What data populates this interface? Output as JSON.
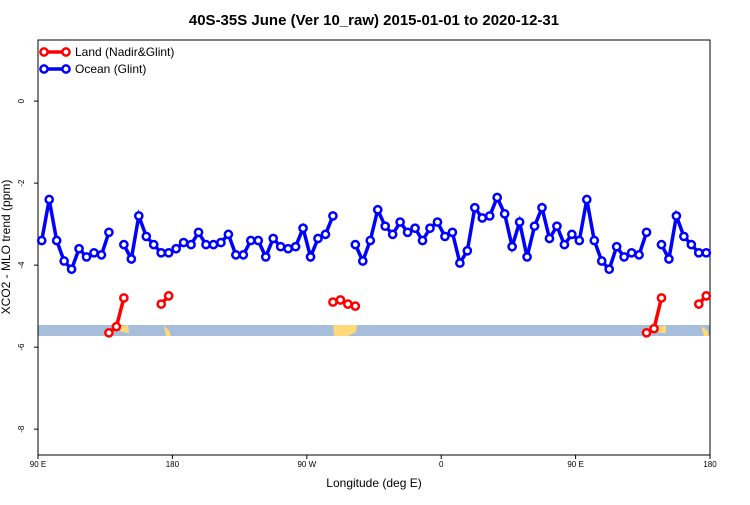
{
  "chart_data": {
    "type": "line",
    "title": "40S-35S June (Ver 10_raw)   2015-01-01 to 2020-12-31",
    "xlabel": "Longitude (deg E)",
    "ylabel": "XCO2 - MLO trend (ppm)",
    "x": [
      92.5,
      97.5,
      102.5,
      107.5,
      112.5,
      117.5,
      122.5,
      127.5,
      132.5,
      137.5,
      142.5,
      147.5,
      152.5,
      157.5,
      162.5,
      167.5,
      172.5,
      177.5,
      182.5,
      187.5,
      192.5,
      197.5,
      202.5,
      207.5,
      212.5,
      217.5,
      222.5,
      227.5,
      232.5,
      237.5,
      242.5,
      247.5,
      252.5,
      257.5,
      262.5,
      267.5,
      272.5,
      277.5,
      282.5,
      287.5,
      292.5,
      297.5,
      302.5,
      307.5,
      312.5,
      317.5,
      322.5,
      327.5,
      332.5,
      337.5,
      342.5,
      347.5,
      352.5,
      357.5,
      362.5,
      367.5,
      372.5,
      377.5,
      382.5,
      387.5,
      392.5,
      397.5,
      402.5,
      407.5,
      412.5,
      417.5,
      422.5,
      427.5,
      432.5,
      437.5,
      442.5,
      447.5,
      452.5,
      457.5,
      462.5,
      467.5,
      472.5,
      477.5,
      482.5,
      487.5,
      492.5,
      497.5,
      502.5,
      507.5,
      512.5,
      517.5,
      522.5,
      527.5,
      532.5,
      537.5
    ],
    "series": [
      {
        "name": "Land (Nadir&Glint)",
        "color": "#ff0000",
        "values": [
          null,
          null,
          null,
          null,
          null,
          null,
          null,
          null,
          null,
          -5.65,
          -5.5,
          -4.8,
          null,
          null,
          null,
          null,
          -4.95,
          -4.75,
          null,
          null,
          null,
          null,
          null,
          null,
          null,
          null,
          null,
          null,
          null,
          null,
          null,
          null,
          null,
          null,
          null,
          null,
          null,
          null,
          null,
          -4.9,
          -4.85,
          -4.95,
          -5.0,
          null,
          null,
          null,
          null,
          null,
          null,
          null,
          null,
          null,
          null,
          null,
          null,
          null,
          null,
          null,
          null,
          null,
          null,
          null,
          null,
          null,
          null,
          null,
          null,
          null,
          null,
          null,
          null,
          null,
          null,
          null,
          null,
          null,
          null,
          null,
          null,
          null,
          null,
          -5.65,
          -5.55,
          -4.8,
          null,
          null,
          null,
          null,
          -4.95,
          -4.75
        ]
      },
      {
        "name": "Ocean (Glint)",
        "color": "#0000ff",
        "values": [
          -3.4,
          -2.4,
          -3.4,
          -3.9,
          -4.1,
          -3.6,
          -3.8,
          -3.7,
          -3.75,
          -3.2,
          null,
          -3.5,
          -3.85,
          -2.8,
          -3.3,
          -3.5,
          -3.7,
          -3.7,
          -3.6,
          -3.45,
          -3.5,
          -3.2,
          -3.5,
          -3.5,
          -3.45,
          -3.25,
          -3.75,
          -3.75,
          -3.4,
          -3.4,
          -3.8,
          -3.35,
          -3.55,
          -3.6,
          -3.55,
          -3.1,
          -3.8,
          -3.35,
          -3.25,
          -2.8,
          null,
          null,
          -3.5,
          -3.9,
          -3.4,
          -2.65,
          -3.05,
          -3.25,
          -2.95,
          -3.2,
          -3.1,
          -3.4,
          -3.1,
          -2.95,
          -3.3,
          -3.2,
          -3.95,
          -3.65,
          -2.6,
          -2.85,
          -2.8,
          -2.35,
          -2.75,
          -3.55,
          -2.95,
          -3.8,
          -3.05,
          -2.6,
          -3.35,
          -3.05,
          -3.5,
          -3.25,
          -3.4,
          -2.4,
          -3.4,
          -3.9,
          -4.1,
          -3.55,
          -3.8,
          -3.7,
          -3.75,
          -3.2,
          null,
          -3.5,
          -3.85,
          -2.8,
          -3.3,
          -3.5,
          -3.7,
          -3.7
        ]
      }
    ],
    "xlim": [
      90,
      540
    ],
    "xticks": [
      {
        "value": 90,
        "label": "90 E"
      },
      {
        "value": 180,
        "label": "180"
      },
      {
        "value": 270,
        "label": "90 W"
      },
      {
        "value": 360,
        "label": "0"
      },
      {
        "value": 450,
        "label": "90 E"
      },
      {
        "value": 540,
        "label": "180"
      }
    ],
    "ylim": [
      -8.63,
      1.49
    ],
    "yticks": [
      0,
      -2,
      -4,
      -6,
      -8
    ],
    "legend": "top-left"
  }
}
